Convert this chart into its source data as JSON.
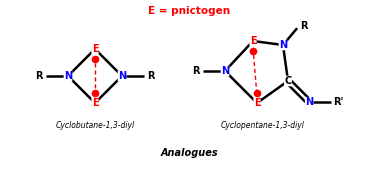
{
  "title": "E = pnictogen",
  "title_color": "#FF0000",
  "label1": "Cyclobutane-1,3-diyl",
  "label2": "Cyclopentane-1,3-diyl",
  "bottom_label": "Analogues",
  "bg_color": "#FFFFFF",
  "bond_color": "#000000",
  "N_color": "#0000FF",
  "E_color": "#FF0000",
  "C_color": "#000000",
  "radical_color": "#FF0000",
  "bond_lw": 1.8,
  "fig_width": 3.78,
  "fig_height": 1.78
}
